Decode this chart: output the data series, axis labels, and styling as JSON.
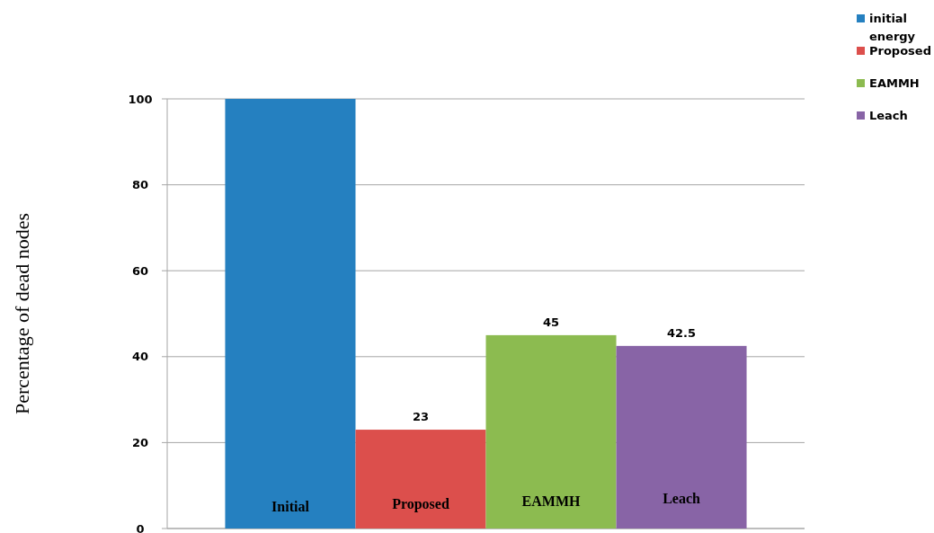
{
  "chart_data": {
    "type": "bar",
    "ylabel": "Percentage of dead nodes",
    "categories": [
      null
    ],
    "series": [
      {
        "name": "initial energy",
        "color": "#2580c0",
        "values": [
          100
        ],
        "value_labels": [
          null
        ]
      },
      {
        "name": "Proposed",
        "color": "#dc4f4c",
        "values": [
          23
        ],
        "value_labels": [
          "23"
        ]
      },
      {
        "name": "EAMMH",
        "color": "#8cbb50",
        "values": [
          45
        ],
        "value_labels": [
          "45"
        ]
      },
      {
        "name": "Leach",
        "color": "#8864a6",
        "values": [
          42.5
        ],
        "value_labels": [
          "42.5"
        ]
      }
    ],
    "annotations": [
      "Initial",
      "Proposed",
      "EAMMH",
      "Leach"
    ],
    "ylim": [
      0,
      100
    ],
    "yticks": [
      0,
      20,
      40,
      60,
      80,
      100
    ],
    "grid": "y",
    "legend": "top right"
  }
}
